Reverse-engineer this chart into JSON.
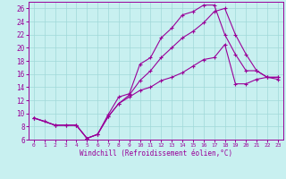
{
  "xlabel": "Windchill (Refroidissement éolien,°C)",
  "bg_color": "#c8f0f0",
  "grid_color": "#a0d8d8",
  "line_color": "#990099",
  "xlim": [
    -0.5,
    23.5
  ],
  "ylim": [
    6,
    27
  ],
  "xticks": [
    0,
    1,
    2,
    3,
    4,
    5,
    6,
    7,
    8,
    9,
    10,
    11,
    12,
    13,
    14,
    15,
    16,
    17,
    18,
    19,
    20,
    21,
    22,
    23
  ],
  "yticks": [
    6,
    8,
    10,
    12,
    14,
    16,
    18,
    20,
    22,
    24,
    26
  ],
  "line1_x": [
    0,
    1,
    2,
    3,
    4,
    5,
    6,
    7,
    8,
    9,
    10,
    11,
    12,
    13,
    14,
    15,
    16,
    17,
    18,
    19,
    20,
    21,
    22,
    23
  ],
  "line1_y": [
    9.3,
    8.8,
    8.2,
    8.2,
    8.2,
    6.2,
    6.8,
    9.8,
    12.5,
    13.0,
    17.5,
    18.5,
    21.5,
    23.0,
    25.0,
    25.5,
    26.5,
    26.5,
    22.0,
    19.0,
    16.5,
    16.5,
    15.5,
    15.5
  ],
  "line2_x": [
    0,
    2,
    3,
    4,
    5,
    6,
    7,
    8,
    9,
    10,
    11,
    12,
    13,
    14,
    15,
    16,
    17,
    18,
    19,
    20,
    21,
    22,
    23
  ],
  "line2_y": [
    9.3,
    8.2,
    8.2,
    8.2,
    6.2,
    6.8,
    9.5,
    11.5,
    12.8,
    15.0,
    16.5,
    18.5,
    20.0,
    21.5,
    22.5,
    23.8,
    25.5,
    26.0,
    22.0,
    19.0,
    16.5,
    15.5,
    15.2
  ],
  "line3_x": [
    0,
    2,
    4,
    5,
    6,
    7,
    8,
    9,
    10,
    11,
    12,
    13,
    14,
    15,
    16,
    17,
    18,
    19,
    20,
    21,
    22,
    23
  ],
  "line3_y": [
    9.3,
    8.2,
    8.2,
    6.2,
    6.8,
    9.5,
    11.5,
    12.5,
    13.5,
    14.0,
    15.0,
    15.5,
    16.2,
    17.2,
    18.2,
    18.5,
    20.5,
    14.5,
    14.5,
    15.2,
    15.5,
    15.5
  ]
}
